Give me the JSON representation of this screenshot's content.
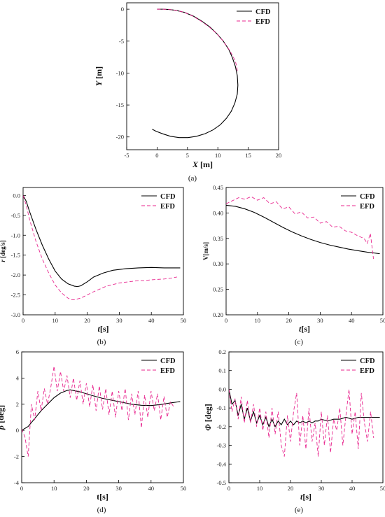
{
  "colors": {
    "cfd": "#000000",
    "efd": "#e8258e"
  },
  "legend": {
    "cfd": "CFD",
    "efd": "EFD"
  },
  "chart_data": [
    {
      "type": "line",
      "panel": "(a)",
      "xlabel_italic": "X",
      "xlabel_unit": " [m]",
      "ylabel_italic": "Y",
      "ylabel_unit": " [m]",
      "xlim": [
        -5,
        20
      ],
      "ylim": [
        -22,
        1
      ],
      "xticks": [
        -5,
        0,
        5,
        10,
        15,
        20
      ],
      "yticks": [
        0,
        -5,
        -10,
        -15,
        -20
      ],
      "legend_position": "top-right",
      "series": [
        {
          "name": "CFD",
          "style": "solid",
          "x": [
            0,
            1.0,
            2.0,
            3.2,
            4.5,
            6.0,
            7.4,
            8.7,
            9.9,
            10.9,
            11.8,
            12.4,
            12.9,
            13.2,
            13.3,
            13.2,
            12.8,
            12.2,
            11.4,
            10.4,
            9.2,
            7.9,
            6.5,
            5.1,
            3.6,
            2.2,
            0.9,
            -0.2,
            -0.8
          ],
          "y": [
            0,
            0,
            -0.05,
            -0.2,
            -0.5,
            -1.1,
            -1.9,
            -2.8,
            -3.9,
            -5.0,
            -6.3,
            -7.6,
            -9.0,
            -10.4,
            -11.9,
            -13.3,
            -14.7,
            -16.0,
            -17.1,
            -18.1,
            -18.9,
            -19.5,
            -19.9,
            -20.1,
            -20.1,
            -19.9,
            -19.5,
            -19.1,
            -18.8
          ]
        },
        {
          "name": "EFD",
          "style": "dashed",
          "x": [
            0,
            1.0,
            2.0,
            3.2,
            4.5,
            5.9,
            7.3,
            8.6,
            9.8,
            10.8,
            11.7,
            12.4,
            12.9,
            13.1,
            13.2,
            13.2
          ],
          "y": [
            0,
            0,
            -0.05,
            -0.2,
            -0.5,
            -1.1,
            -1.9,
            -2.8,
            -3.8,
            -4.9,
            -6.1,
            -7.2,
            -8.2,
            -9.0,
            -9.6,
            -10.0
          ]
        }
      ]
    },
    {
      "type": "line",
      "panel": "(b)",
      "xlabel_italic": "t",
      "xlabel_unit": "[s]",
      "ylabel_italic": "r",
      "ylabel_unit": " [deg/s]",
      "xlim": [
        0,
        50
      ],
      "ylim": [
        -3.0,
        0.2
      ],
      "xticks": [
        0,
        10,
        20,
        30,
        40,
        50
      ],
      "yticks": [
        0.0,
        -0.5,
        -1.0,
        -1.5,
        -2.0,
        -2.5,
        -3.0
      ],
      "ytick_labels": [
        "0.0",
        "-0.5",
        "-1.0",
        "-1.5",
        "-2.0",
        "-2.5",
        "-3.0"
      ],
      "legend_position": "top-right",
      "series": [
        {
          "name": "CFD",
          "style": "solid",
          "x": [
            0,
            1,
            2,
            4,
            6,
            8,
            10,
            12,
            14,
            16,
            17,
            18,
            20,
            22,
            25,
            28,
            32,
            36,
            40,
            44,
            49
          ],
          "y": [
            0,
            -0.15,
            -0.4,
            -0.85,
            -1.25,
            -1.6,
            -1.9,
            -2.1,
            -2.22,
            -2.28,
            -2.29,
            -2.27,
            -2.17,
            -2.05,
            -1.95,
            -1.88,
            -1.84,
            -1.82,
            -1.81,
            -1.82,
            -1.82
          ]
        },
        {
          "name": "EFD",
          "style": "dashed",
          "x": [
            0,
            1,
            2,
            4,
            6,
            8,
            10,
            12,
            14,
            15,
            16,
            18,
            20,
            22,
            24,
            26,
            28,
            30,
            32,
            34,
            36,
            38,
            40,
            42,
            44,
            46,
            48
          ],
          "y": [
            0,
            -0.25,
            -0.6,
            -1.15,
            -1.6,
            -1.95,
            -2.25,
            -2.45,
            -2.58,
            -2.62,
            -2.62,
            -2.58,
            -2.5,
            -2.42,
            -2.35,
            -2.28,
            -2.24,
            -2.2,
            -2.18,
            -2.16,
            -2.14,
            -2.14,
            -2.12,
            -2.11,
            -2.1,
            -2.08,
            -2.05
          ]
        }
      ]
    },
    {
      "type": "line",
      "panel": "(c)",
      "xlabel_italic": "t",
      "xlabel_unit": "[s]",
      "ylabel_italic": "",
      "ylabel_unit": "V[m/s]",
      "xlim": [
        0,
        50
      ],
      "ylim": [
        0.2,
        0.45
      ],
      "xticks": [
        0,
        10,
        20,
        30,
        40,
        50
      ],
      "yticks": [
        0.2,
        0.25,
        0.3,
        0.35,
        0.4,
        0.45
      ],
      "ytick_labels": [
        "0.20",
        "0.25",
        "0.30",
        "0.35",
        "0.40",
        "0.45"
      ],
      "legend_position": "top-right",
      "series": [
        {
          "name": "CFD",
          "style": "solid",
          "x": [
            0,
            3,
            6,
            9,
            12,
            15,
            18,
            21,
            24,
            27,
            30,
            33,
            36,
            39,
            42,
            45,
            49
          ],
          "y": [
            0.415,
            0.413,
            0.408,
            0.401,
            0.392,
            0.382,
            0.372,
            0.363,
            0.355,
            0.348,
            0.342,
            0.337,
            0.333,
            0.329,
            0.326,
            0.323,
            0.32
          ]
        },
        {
          "name": "EFD",
          "style": "dashed",
          "x": [
            0,
            2,
            4,
            6,
            8,
            10,
            12,
            14,
            16,
            18,
            20,
            22,
            24,
            26,
            28,
            30,
            32,
            34,
            36,
            38,
            40,
            42,
            44,
            45,
            46,
            47
          ],
          "y": [
            0.418,
            0.424,
            0.43,
            0.427,
            0.432,
            0.425,
            0.43,
            0.418,
            0.422,
            0.408,
            0.412,
            0.398,
            0.402,
            0.39,
            0.392,
            0.38,
            0.383,
            0.372,
            0.374,
            0.365,
            0.362,
            0.355,
            0.35,
            0.34,
            0.36,
            0.31
          ]
        }
      ]
    },
    {
      "type": "line",
      "panel": "(d)",
      "xlabel_italic": "",
      "xlabel_unit": "t[s]",
      "ylabel_italic": "β",
      "ylabel_unit": " [deg]",
      "xlim": [
        0,
        50
      ],
      "ylim": [
        -4,
        6
      ],
      "xticks": [
        0,
        10,
        20,
        30,
        40,
        50
      ],
      "yticks": [
        -4,
        -2,
        0,
        2,
        4,
        6
      ],
      "legend_position": "top-right",
      "series": [
        {
          "name": "CFD",
          "style": "solid",
          "x": [
            0,
            2,
            4,
            6,
            8,
            10,
            12,
            14,
            15,
            16,
            18,
            20,
            22,
            25,
            28,
            31,
            34,
            37,
            40,
            43,
            46,
            49
          ],
          "y": [
            0,
            0.3,
            0.9,
            1.5,
            2.0,
            2.5,
            2.85,
            3.05,
            3.1,
            3.05,
            2.95,
            2.8,
            2.65,
            2.45,
            2.3,
            2.15,
            2.0,
            1.92,
            1.9,
            1.98,
            2.1,
            2.2
          ]
        },
        {
          "name": "EFD",
          "style": "dashed",
          "x": [
            0,
            1,
            2,
            3,
            4,
            5,
            6,
            7,
            8,
            9,
            10,
            11,
            12,
            13,
            14,
            15,
            16,
            17,
            18,
            19,
            20,
            21,
            22,
            23,
            24,
            25,
            26,
            27,
            28,
            29,
            30,
            31,
            32,
            33,
            34,
            35,
            36,
            37,
            38,
            39,
            40,
            41,
            42,
            43,
            44,
            45,
            46,
            47
          ],
          "y": [
            0.1,
            -0.5,
            -2.0,
            2.0,
            0.8,
            3.0,
            1.5,
            3.2,
            2.0,
            3.3,
            4.9,
            3.0,
            4.5,
            3.0,
            4.2,
            2.5,
            4.0,
            2.3,
            3.8,
            2.0,
            3.6,
            1.8,
            3.5,
            1.5,
            3.4,
            1.6,
            3.2,
            1.2,
            3.0,
            1.0,
            3.0,
            1.5,
            3.2,
            0.8,
            2.8,
            1.2,
            3.0,
            0.2,
            2.7,
            1.0,
            3.0,
            1.5,
            2.8,
            0.8,
            2.6,
            1.0,
            2.2,
            1.8
          ]
        }
      ]
    },
    {
      "type": "line",
      "panel": "(e)",
      "xlabel_italic": "t",
      "xlabel_unit": "[s]",
      "ylabel_italic": "Φ",
      "ylabel_unit": " [deg]",
      "xlim": [
        0,
        50
      ],
      "ylim": [
        -0.5,
        0.2
      ],
      "xticks": [
        0,
        10,
        20,
        30,
        40,
        50
      ],
      "yticks": [
        0.2,
        0.1,
        0.0,
        -0.1,
        -0.2,
        -0.3,
        -0.4,
        -0.5
      ],
      "ytick_labels": [
        "0.2",
        "0.1",
        "0.0",
        "-0.1",
        "-0.2",
        "-0.3",
        "-0.4",
        "-0.5"
      ],
      "legend_position": "top-right",
      "series": [
        {
          "name": "CFD",
          "style": "solid",
          "x": [
            0,
            1,
            2,
            3,
            4,
            5,
            6,
            7,
            8,
            9,
            10,
            11,
            12,
            13,
            14,
            15,
            16,
            17,
            18,
            19,
            20,
            21,
            22,
            23,
            24,
            25,
            26,
            27,
            28,
            29,
            30,
            32,
            34,
            36,
            38,
            40,
            42,
            44,
            46,
            48,
            49
          ],
          "y": [
            0,
            -0.08,
            -0.06,
            -0.14,
            -0.08,
            -0.16,
            -0.1,
            -0.17,
            -0.12,
            -0.18,
            -0.14,
            -0.19,
            -0.15,
            -0.2,
            -0.16,
            -0.2,
            -0.17,
            -0.19,
            -0.16,
            -0.19,
            -0.17,
            -0.19,
            -0.17,
            -0.18,
            -0.17,
            -0.18,
            -0.17,
            -0.18,
            -0.17,
            -0.17,
            -0.16,
            -0.17,
            -0.16,
            -0.16,
            -0.15,
            -0.16,
            -0.15,
            -0.15,
            -0.15,
            -0.15,
            -0.15
          ]
        },
        {
          "name": "EFD",
          "style": "dashed",
          "x": [
            0,
            1,
            2,
            3,
            4,
            5,
            6,
            7,
            8,
            9,
            10,
            11,
            12,
            13,
            14,
            15,
            16,
            17,
            18,
            19,
            20,
            21,
            22,
            23,
            24,
            25,
            26,
            27,
            28,
            29,
            30,
            31,
            32,
            33,
            34,
            35,
            36,
            37,
            38,
            39,
            40,
            41,
            42,
            43,
            44,
            45,
            46,
            47
          ],
          "y": [
            0,
            -0.12,
            -0.05,
            -0.16,
            -0.04,
            -0.18,
            -0.06,
            -0.18,
            -0.08,
            -0.2,
            -0.1,
            -0.22,
            -0.12,
            -0.26,
            -0.1,
            -0.24,
            -0.12,
            -0.3,
            -0.36,
            -0.14,
            -0.28,
            -0.12,
            -0.02,
            -0.3,
            -0.14,
            -0.32,
            -0.1,
            -0.28,
            -0.18,
            -0.36,
            -0.12,
            -0.3,
            -0.14,
            -0.34,
            -0.16,
            -0.22,
            -0.1,
            -0.3,
            -0.14,
            0.0,
            -0.24,
            -0.12,
            -0.32,
            -0.02,
            -0.18,
            -0.28,
            -0.12,
            -0.26
          ]
        }
      ]
    }
  ]
}
